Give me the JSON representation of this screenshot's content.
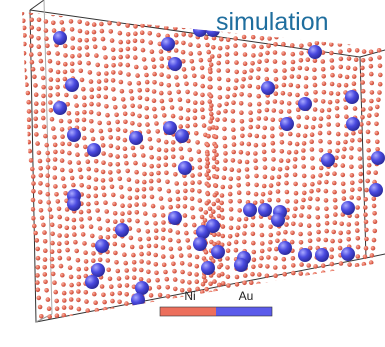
{
  "header": {
    "title": "simulation"
  },
  "legend": {
    "items": [
      {
        "label": "Ni",
        "color": "#ec6f5c"
      },
      {
        "label": "Au",
        "color": "#5b5bea"
      }
    ]
  }
}
